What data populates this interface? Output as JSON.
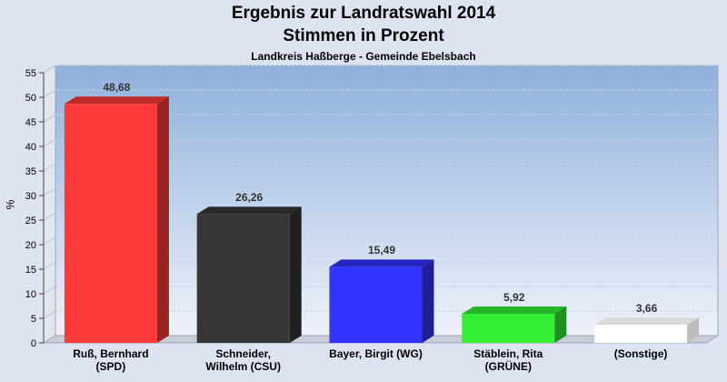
{
  "header": {
    "title": "Ergebnis zur Landratswahl 2014",
    "subtitle": "Stimmen in Prozent",
    "region": "Landkreis Haßberge - Gemeinde Ebelsbach"
  },
  "chart_data": {
    "type": "bar",
    "title": "Ergebnis zur Landratswahl 2014",
    "subtitle": "Stimmen in Prozent",
    "xlabel": "",
    "ylabel": "%",
    "ylim": [
      0,
      55
    ],
    "yticks": [
      "0",
      "5",
      "10",
      "15",
      "20",
      "25",
      "30",
      "35",
      "40",
      "45",
      "50",
      "55"
    ],
    "grid": true,
    "categories": [
      [
        "Ruß, Bernhard",
        "(SPD)"
      ],
      [
        "Schneider,",
        "Wilhelm (CSU)"
      ],
      [
        "Bayer, Birgit (WG)"
      ],
      [
        "Stäblein, Rita",
        "(GRÜNE)"
      ],
      [
        "(Sonstige)"
      ]
    ],
    "values": [
      48.68,
      26.26,
      15.49,
      5.92,
      3.66
    ],
    "value_labels": [
      "48,68",
      "26,26",
      "15,49",
      "5,92",
      "3,66"
    ],
    "colors": [
      "#ff3a3a",
      "#363636",
      "#3333ff",
      "#33ee33",
      "#ffffff"
    ]
  }
}
